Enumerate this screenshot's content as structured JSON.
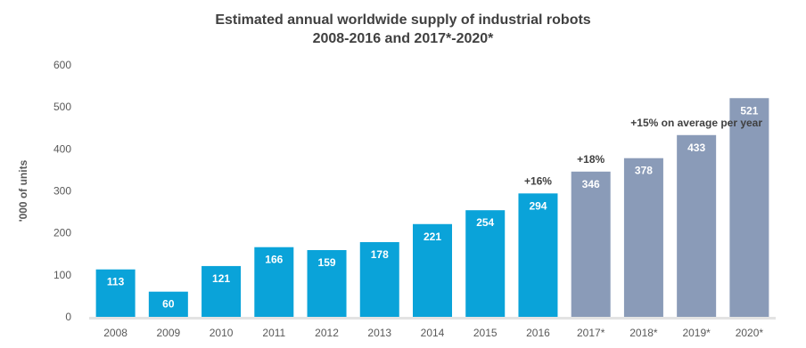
{
  "chart_data": {
    "type": "bar",
    "title": [
      "Estimated annual worldwide supply of industrial robots",
      "2008-2016 and 2017*-2020*"
    ],
    "ylabel": "'000 of units",
    "xlabel": "",
    "ylim": [
      0,
      600
    ],
    "yticks": [
      0,
      100,
      200,
      300,
      400,
      500,
      600
    ],
    "grid": false,
    "categories": [
      "2008",
      "2009",
      "2010",
      "2011",
      "2012",
      "2013",
      "2014",
      "2015",
      "2016",
      "2017*",
      "2018*",
      "2019*",
      "2020*"
    ],
    "values": [
      113,
      60,
      121,
      166,
      159,
      178,
      221,
      254,
      294,
      346,
      378,
      433,
      521
    ],
    "value_labels": [
      "113",
      "60",
      "121",
      "166",
      "159",
      "178",
      "221",
      "254",
      "294",
      "346",
      "378",
      "433",
      "521"
    ],
    "estimated_from_index": 9,
    "colors": {
      "actual": "#0aa3d9",
      "estimated": "#8a9bb8",
      "text": "#404040",
      "axis_text": "#595959"
    },
    "annotations": [
      {
        "text": "+16%",
        "category": "2016"
      },
      {
        "text": "+18%",
        "category": "2017*"
      },
      {
        "text": "+15%  on average per year",
        "category": "2019*"
      }
    ]
  }
}
